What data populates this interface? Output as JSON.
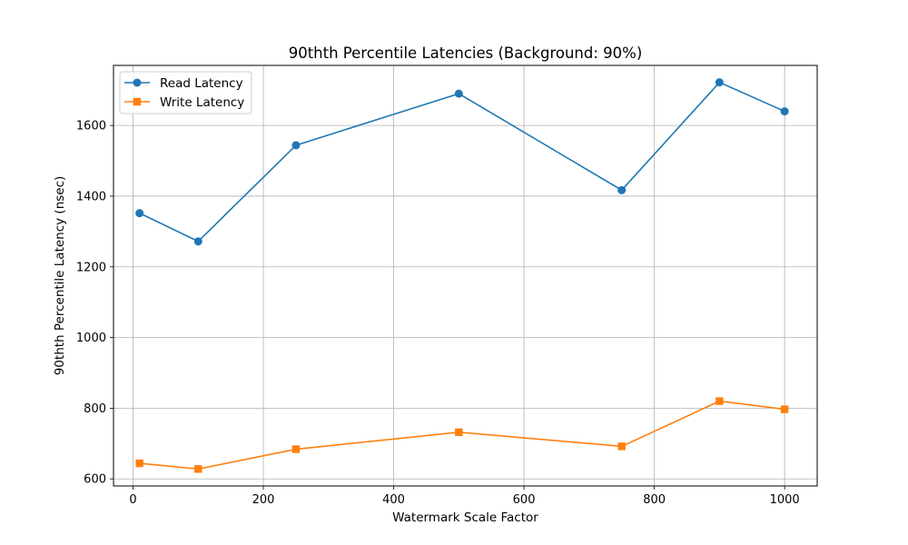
{
  "chart_data": {
    "type": "line",
    "title": "90thth Percentile Latencies (Background: 90%)",
    "xlabel": "Watermark Scale Factor",
    "ylabel": "90thth Percentile Latency (nsec)",
    "xlim": [
      -30,
      1050
    ],
    "ylim": [
      580,
      1770
    ],
    "xticks": [
      0,
      200,
      400,
      600,
      800,
      1000
    ],
    "yticks": [
      600,
      800,
      1000,
      1200,
      1400,
      1600
    ],
    "grid": true,
    "legend_position": "top-left",
    "series": [
      {
        "name": "Read Latency",
        "color": "#1f77b4",
        "marker": "circle",
        "x": [
          10,
          100,
          250,
          500,
          750,
          900,
          1000
        ],
        "y": [
          1352,
          1272,
          1544,
          1690,
          1417,
          1722,
          1640
        ]
      },
      {
        "name": "Write Latency",
        "color": "#ff7f0e",
        "marker": "square",
        "x": [
          10,
          100,
          250,
          500,
          750,
          900,
          1000
        ],
        "y": [
          644,
          628,
          684,
          732,
          692,
          820,
          797
        ]
      }
    ]
  }
}
